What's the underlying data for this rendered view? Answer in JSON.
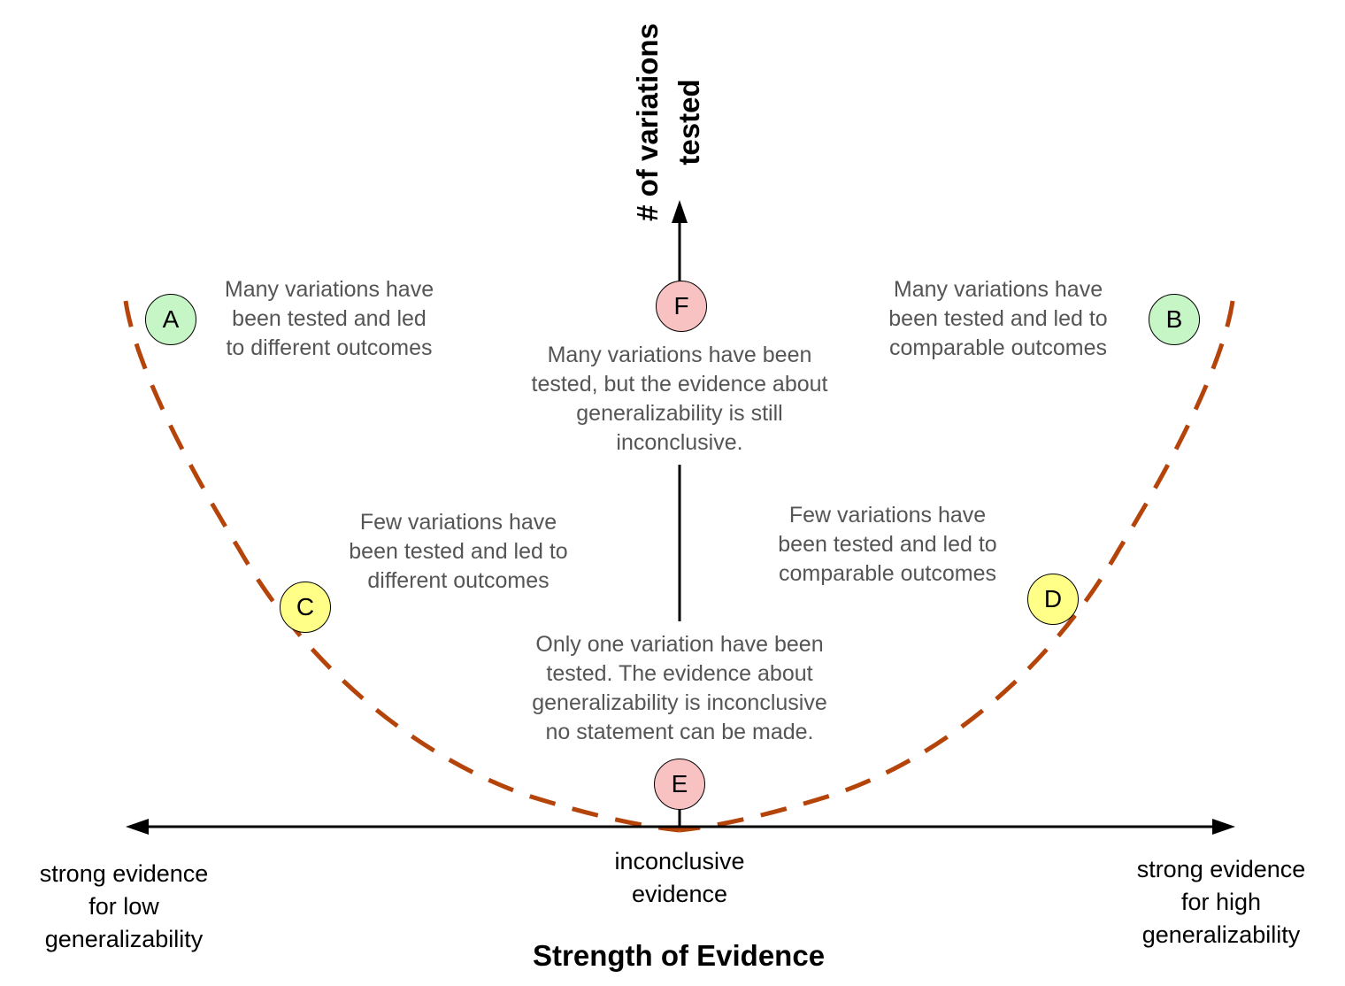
{
  "colors": {
    "curve": "#b5440b",
    "axis": "#000000",
    "text": "#555555",
    "node_green": "#c6f5c6",
    "node_yellow": "#ffff88",
    "node_red": "#f9c2c2"
  },
  "x_axis": {
    "title": "Strength of Evidence",
    "left_label": [
      "strong evidence",
      "for low",
      "generalizability"
    ],
    "center_label": [
      "inconclusive",
      "evidence"
    ],
    "right_label": [
      "strong evidence",
      "for high",
      "generalizability"
    ]
  },
  "y_axis": {
    "title": [
      "# of variations",
      "tested"
    ]
  },
  "nodes": {
    "A": {
      "label": "A",
      "color": "green",
      "text": [
        "Many variations have",
        "been tested and led",
        "to different outcomes"
      ]
    },
    "B": {
      "label": "B",
      "color": "green",
      "text": [
        "Many variations have",
        "been tested and led to",
        "comparable outcomes"
      ]
    },
    "C": {
      "label": "C",
      "color": "yellow",
      "text": [
        "Few variations have",
        "been tested and led to",
        "different outcomes"
      ]
    },
    "D": {
      "label": "D",
      "color": "yellow",
      "text": [
        "Few variations have",
        "been tested and led to",
        "comparable outcomes"
      ]
    },
    "E": {
      "label": "E",
      "color": "red",
      "text": [
        "Only one variation have been",
        "tested. The evidence about",
        "generalizability is inconclusive",
        "no statement can be made."
      ]
    },
    "F": {
      "label": "F",
      "color": "red",
      "text": [
        "Many variations have been",
        "tested, but the evidence about",
        "generalizability is still",
        "inconclusive."
      ]
    }
  }
}
